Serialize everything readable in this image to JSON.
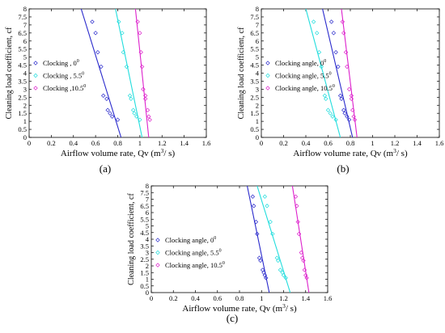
{
  "figure": {
    "panels": [
      {
        "id": "a",
        "caption": "(a)",
        "xlabel": "Airflow volume rate, Qv (m",
        "xlabel_exp": "3",
        "xlabel_tail": "/ s)",
        "ylabel": "Cleaning load coefficient, cf",
        "legend": [
          {
            "label": "Clocking , 0",
            "sup": "0"
          },
          {
            "label": "Clocking , 5.5",
            "sup": "0"
          },
          {
            "label": "Clocking ,10.5",
            "sup": "0"
          }
        ]
      },
      {
        "id": "b",
        "caption": "(b)",
        "xlabel": "Airflow volume rate, Qv (m",
        "xlabel_exp": "3",
        "xlabel_tail": "/ s)",
        "ylabel": "Cleaning load coefficient, cf",
        "legend": [
          {
            "label": "Clocking angle, 0",
            "sup": "0"
          },
          {
            "label": "Clocking angle, 5.5",
            "sup": "0"
          },
          {
            "label": "Clocking angle, 10.5",
            "sup": "0"
          }
        ]
      },
      {
        "id": "c",
        "caption": "(c)",
        "xlabel": "Airflow volume rate, Qv (m",
        "xlabel_exp": "3",
        "xlabel_tail": "/ s)",
        "ylabel": "Cleaning load coefficient, cf",
        "legend": [
          {
            "label": "Clocking angle, 0",
            "sup": "0"
          },
          {
            "label": "Clocking angle, 5.5",
            "sup": "0"
          },
          {
            "label": "Clocking angle, 10.5",
            "sup": "0"
          }
        ]
      }
    ]
  },
  "colors": {
    "series0": "#2a2acc",
    "series1": "#22dddd",
    "series2": "#dd22cc",
    "axis": "#000000"
  },
  "chart_data": [
    {
      "type": "scatter",
      "panel": "a",
      "xlim": [
        0,
        1.6
      ],
      "ylim": [
        0,
        8
      ],
      "xticks": [
        0,
        0.2,
        0.4,
        0.6,
        0.8,
        1,
        1.2,
        1.4,
        1.6
      ],
      "yticks": [
        0,
        0.5,
        1,
        1.5,
        2,
        2.5,
        3,
        3.5,
        4,
        4.5,
        5,
        5.5,
        6,
        6.5,
        7,
        7.5,
        8
      ],
      "series": [
        {
          "name": "Clocking , 0",
          "points": [
            [
              0.57,
              7.2
            ],
            [
              0.6,
              6.5
            ],
            [
              0.62,
              5.3
            ],
            [
              0.65,
              4.4
            ],
            [
              0.67,
              2.6
            ],
            [
              0.7,
              2.4
            ],
            [
              0.71,
              1.7
            ],
            [
              0.73,
              1.5
            ],
            [
              0.75,
              1.3
            ],
            [
              0.8,
              1.1
            ]
          ],
          "fit": [
            [
              0.47,
              8
            ],
            [
              0.83,
              0
            ]
          ]
        },
        {
          "name": "Clocking , 5.5",
          "points": [
            [
              0.81,
              7.2
            ],
            [
              0.84,
              6.5
            ],
            [
              0.85,
              5.3
            ],
            [
              0.88,
              4.4
            ],
            [
              0.91,
              2.6
            ],
            [
              0.92,
              2.4
            ],
            [
              0.94,
              1.7
            ],
            [
              0.95,
              1.5
            ],
            [
              0.97,
              1.3
            ],
            [
              1.0,
              1.1
            ]
          ],
          "fit": [
            [
              0.78,
              8
            ],
            [
              1.02,
              0
            ]
          ]
        },
        {
          "name": "Clocking ,10.5",
          "points": [
            [
              0.98,
              7.2
            ],
            [
              1.0,
              6.5
            ],
            [
              1.01,
              5.3
            ],
            [
              1.02,
              4.4
            ],
            [
              1.03,
              3.0
            ],
            [
              1.05,
              2.6
            ],
            [
              1.05,
              2.4
            ],
            [
              1.07,
              1.7
            ],
            [
              1.08,
              1.3
            ],
            [
              1.09,
              1.1
            ]
          ],
          "fit": [
            [
              0.96,
              8
            ],
            [
              1.08,
              0
            ]
          ]
        }
      ]
    },
    {
      "type": "scatter",
      "panel": "b",
      "xlim": [
        0,
        1.6
      ],
      "ylim": [
        0,
        8
      ],
      "xticks": [
        0,
        0.2,
        0.4,
        0.6,
        0.8,
        1,
        1.2,
        1.4,
        1.6
      ],
      "yticks": [
        0,
        0.5,
        1,
        1.5,
        2,
        2.5,
        3,
        3.5,
        4,
        4.5,
        5,
        5.5,
        6,
        6.5,
        7,
        7.5,
        8
      ],
      "series": [
        {
          "name": "Clocking angle, 0",
          "points": [
            [
              0.63,
              7.2
            ],
            [
              0.65,
              6.5
            ],
            [
              0.67,
              5.3
            ],
            [
              0.69,
              4.4
            ],
            [
              0.71,
              2.6
            ],
            [
              0.72,
              2.4
            ],
            [
              0.74,
              1.7
            ],
            [
              0.75,
              1.5
            ],
            [
              0.77,
              1.3
            ],
            [
              0.79,
              1.1
            ]
          ],
          "fit": [
            [
              0.55,
              8
            ],
            [
              0.82,
              0
            ]
          ]
        },
        {
          "name": "Clocking angle, 5.5",
          "points": [
            [
              0.47,
              7.2
            ],
            [
              0.5,
              6.5
            ],
            [
              0.52,
              5.3
            ],
            [
              0.54,
              4.4
            ],
            [
              0.57,
              2.6
            ],
            [
              0.58,
              2.4
            ],
            [
              0.6,
              1.7
            ],
            [
              0.62,
              1.5
            ],
            [
              0.64,
              1.3
            ],
            [
              0.67,
              1.1
            ]
          ],
          "fit": [
            [
              0.4,
              8
            ],
            [
              0.71,
              0
            ]
          ]
        },
        {
          "name": "Clocking angle, 10.5",
          "points": [
            [
              0.73,
              7.2
            ],
            [
              0.74,
              6.5
            ],
            [
              0.76,
              5.3
            ],
            [
              0.77,
              4.4
            ],
            [
              0.79,
              3.0
            ],
            [
              0.81,
              2.6
            ],
            [
              0.81,
              2.4
            ],
            [
              0.82,
              1.7
            ],
            [
              0.83,
              1.3
            ],
            [
              0.84,
              1.1
            ]
          ],
          "fit": [
            [
              0.72,
              8
            ],
            [
              0.86,
              0
            ]
          ]
        }
      ]
    },
    {
      "type": "scatter",
      "panel": "c",
      "xlim": [
        0,
        1.6
      ],
      "ylim": [
        0,
        8
      ],
      "xticks": [
        0,
        0.2,
        0.4,
        0.6,
        0.8,
        1,
        1.2,
        1.4,
        1.6
      ],
      "yticks": [
        0,
        0.5,
        1,
        1.5,
        2,
        2.5,
        3,
        3.5,
        4,
        4.5,
        5,
        5.5,
        6,
        6.5,
        7,
        7.5,
        8
      ],
      "series": [
        {
          "name": "Clocking angle, 0",
          "points": [
            [
              0.92,
              7.2
            ],
            [
              0.93,
              6.5
            ],
            [
              0.95,
              5.3
            ],
            [
              0.96,
              4.4
            ],
            [
              0.98,
              2.6
            ],
            [
              0.99,
              2.4
            ],
            [
              1.01,
              1.7
            ],
            [
              1.02,
              1.5
            ],
            [
              1.03,
              1.3
            ],
            [
              1.04,
              1.1
            ]
          ],
          "fit": [
            [
              0.87,
              8
            ],
            [
              1.07,
              0
            ]
          ]
        },
        {
          "name": "Clocking angle, 5.5",
          "points": [
            [
              1.03,
              7.2
            ],
            [
              1.05,
              6.5
            ],
            [
              1.08,
              5.3
            ],
            [
              1.1,
              4.4
            ],
            [
              1.14,
              2.6
            ],
            [
              1.15,
              2.4
            ],
            [
              1.17,
              1.7
            ],
            [
              1.19,
              1.5
            ],
            [
              1.2,
              1.3
            ],
            [
              1.22,
              1.1
            ]
          ],
          "fit": [
            [
              0.96,
              8
            ],
            [
              1.26,
              0
            ]
          ]
        },
        {
          "name": "Clocking angle, 10.5",
          "points": [
            [
              1.31,
              7.2
            ],
            [
              1.32,
              6.5
            ],
            [
              1.33,
              5.3
            ],
            [
              1.34,
              4.4
            ],
            [
              1.36,
              3.0
            ],
            [
              1.37,
              2.6
            ],
            [
              1.38,
              2.4
            ],
            [
              1.39,
              1.7
            ],
            [
              1.4,
              1.3
            ],
            [
              1.41,
              1.1
            ]
          ],
          "fit": [
            [
              1.28,
              8
            ],
            [
              1.43,
              0
            ]
          ]
        }
      ]
    }
  ]
}
